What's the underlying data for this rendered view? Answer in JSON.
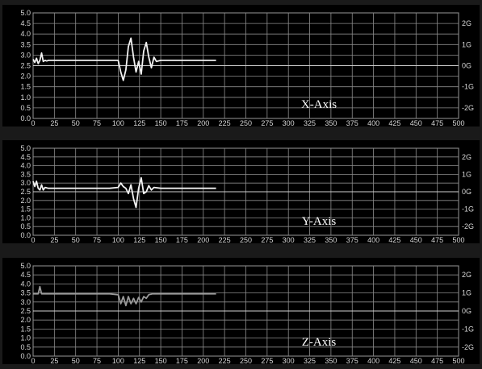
{
  "colors": {
    "background": "#000000",
    "grid": "#8c8c8c",
    "border": "#bdbdbd",
    "trace": "#f2f2f2",
    "z_trace": "#9a9a9a",
    "frame_bg": "#1a1a1a"
  },
  "chart_data": [
    {
      "type": "line",
      "title": "X-Axis",
      "xlim": [
        0,
        500
      ],
      "ylim": [
        0.0,
        5.0
      ],
      "x_ticks": [
        "0",
        "25",
        "50",
        "75",
        "100",
        "125",
        "150",
        "175",
        "200",
        "225",
        "250",
        "275",
        "300",
        "325",
        "350",
        "375",
        "400",
        "425",
        "450",
        "475",
        "500"
      ],
      "y_ticks_left": [
        "0.0",
        "0.5",
        "1.0",
        "1.5",
        "2.0",
        "2.5",
        "3.0",
        "3.5",
        "4.0",
        "4.5",
        "5.0"
      ],
      "y_ticks_right": [
        "2G",
        "1G",
        "0G",
        "-1G",
        "-2G"
      ],
      "y_ticks_right_values": [
        4.5,
        3.5,
        2.5,
        1.5,
        0.5
      ],
      "grid": true,
      "reference_line": 2.5,
      "series": [
        {
          "x": [
            0,
            2,
            4,
            6,
            8,
            10,
            12,
            14,
            16,
            18,
            20,
            30,
            50,
            80,
            100,
            103,
            106,
            109,
            112,
            115,
            118,
            121,
            124,
            127,
            130,
            133,
            136,
            139,
            142,
            145,
            150,
            160,
            180,
            200,
            215
          ],
          "y": [
            2.8,
            2.65,
            2.85,
            2.6,
            2.75,
            3.1,
            2.7,
            2.75,
            2.72,
            2.75,
            2.75,
            2.75,
            2.75,
            2.75,
            2.75,
            2.2,
            1.8,
            2.3,
            3.4,
            3.8,
            2.9,
            2.2,
            2.7,
            2.1,
            3.2,
            3.6,
            2.9,
            2.4,
            2.9,
            2.7,
            2.75,
            2.75,
            2.75,
            2.75,
            2.75
          ]
        }
      ]
    },
    {
      "type": "line",
      "title": "Y-Axis",
      "xlim": [
        0,
        500
      ],
      "ylim": [
        0.0,
        5.0
      ],
      "x_ticks": [
        "0",
        "25",
        "50",
        "75",
        "100",
        "125",
        "150",
        "175",
        "200",
        "225",
        "250",
        "275",
        "300",
        "325",
        "350",
        "375",
        "400",
        "425",
        "450",
        "475",
        "500"
      ],
      "y_ticks_left": [
        "0.0",
        "0.5",
        "1.0",
        "1.5",
        "2.0",
        "2.5",
        "3.0",
        "3.5",
        "4.0",
        "4.5",
        "5.0"
      ],
      "y_ticks_right": [
        "2G",
        "1G",
        "0G",
        "-1G",
        "-2G"
      ],
      "y_ticks_right_values": [
        4.5,
        3.5,
        2.5,
        1.5,
        0.5
      ],
      "grid": true,
      "reference_line": 2.5,
      "series": [
        {
          "x": [
            0,
            2,
            4,
            6,
            8,
            10,
            12,
            14,
            18,
            30,
            60,
            90,
            100,
            103,
            106,
            109,
            112,
            115,
            118,
            121,
            124,
            127,
            130,
            133,
            136,
            139,
            142,
            150,
            170,
            200,
            215
          ],
          "y": [
            3.1,
            2.8,
            3.1,
            2.7,
            2.6,
            2.9,
            2.6,
            2.75,
            2.7,
            2.7,
            2.7,
            2.7,
            2.75,
            3.0,
            2.8,
            2.7,
            2.4,
            2.9,
            2.1,
            1.6,
            2.7,
            3.3,
            2.4,
            2.5,
            2.85,
            2.6,
            2.75,
            2.7,
            2.7,
            2.7,
            2.7
          ]
        }
      ]
    },
    {
      "type": "line",
      "title": "Z-Axis",
      "xlim": [
        0,
        500
      ],
      "ylim": [
        0.0,
        5.0
      ],
      "x_ticks": [
        "0",
        "25",
        "50",
        "75",
        "100",
        "125",
        "150",
        "175",
        "200",
        "225",
        "250",
        "275",
        "300",
        "325",
        "350",
        "375",
        "400",
        "425",
        "450",
        "475",
        "500"
      ],
      "y_ticks_left": [
        "0.0",
        "0.5",
        "1.0",
        "1.5",
        "2.0",
        "2.5",
        "3.0",
        "3.5",
        "4.0",
        "4.5",
        "5.0"
      ],
      "y_ticks_right": [
        "2G",
        "1G",
        "0G",
        "-1G",
        "-2G"
      ],
      "y_ticks_right_values": [
        4.5,
        3.5,
        2.5,
        1.5,
        0.5
      ],
      "grid": true,
      "reference_line": 2.5,
      "series": [
        {
          "x": [
            0,
            6,
            8,
            10,
            12,
            16,
            30,
            60,
            90,
            100,
            103,
            106,
            109,
            112,
            115,
            118,
            121,
            124,
            127,
            130,
            133,
            136,
            140,
            150,
            170,
            200,
            215
          ],
          "y": [
            3.45,
            3.45,
            3.85,
            3.45,
            3.45,
            3.45,
            3.45,
            3.45,
            3.45,
            3.4,
            2.9,
            3.3,
            2.8,
            3.3,
            2.9,
            3.2,
            2.9,
            3.25,
            3.0,
            3.3,
            3.2,
            3.4,
            3.45,
            3.45,
            3.45,
            3.45,
            3.45
          ]
        }
      ]
    }
  ]
}
